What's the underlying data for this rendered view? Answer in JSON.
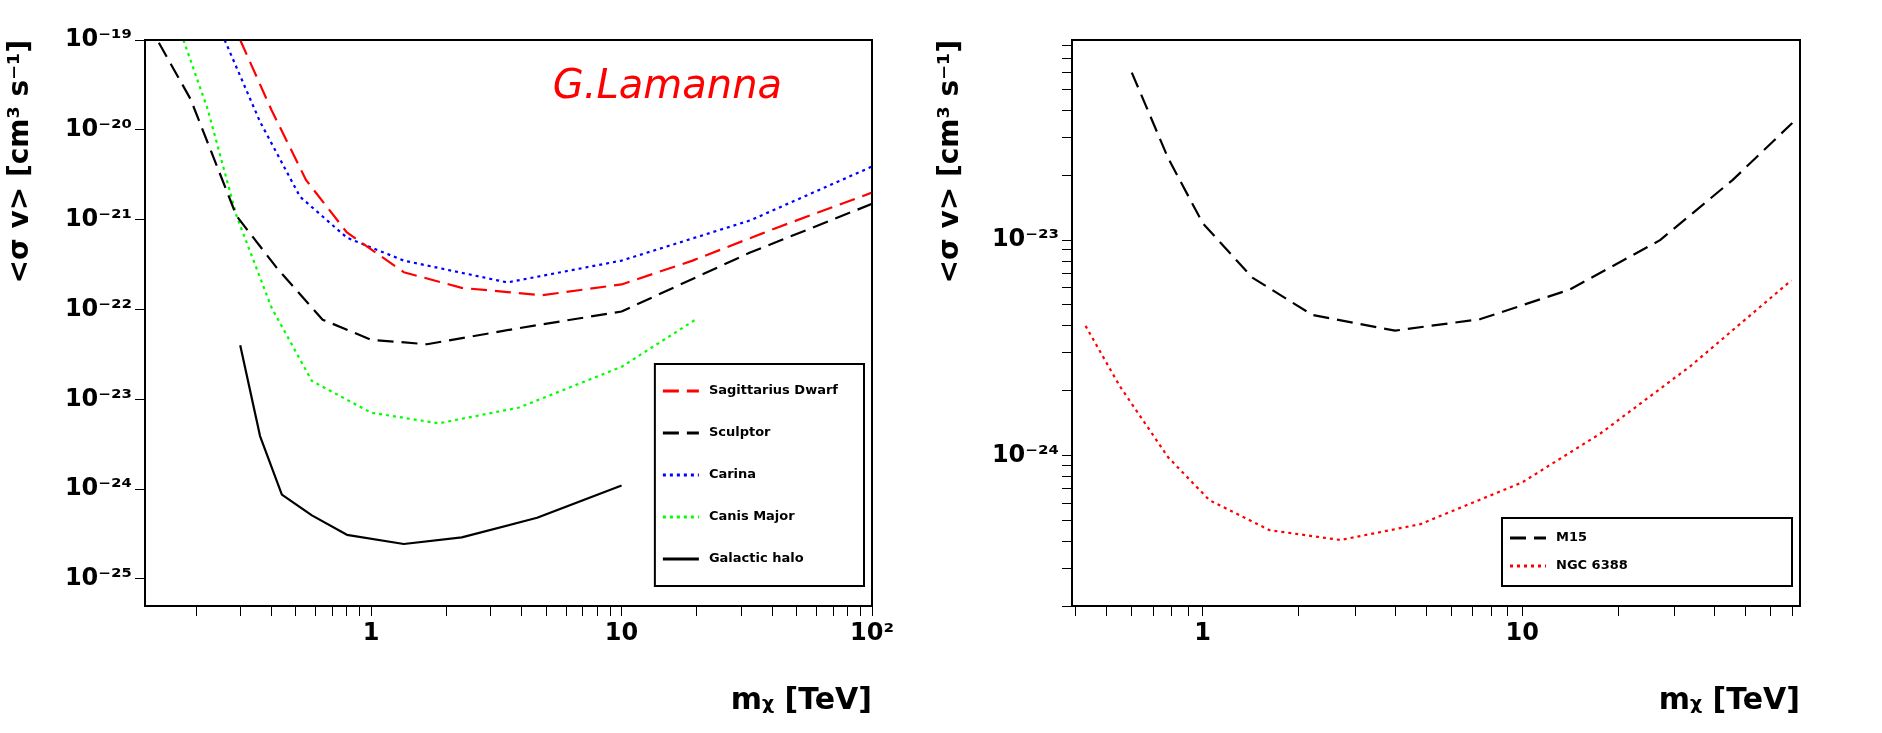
{
  "chart_data": [
    {
      "type": "line",
      "xlabel": "mᵪ [TeV]",
      "ylabel": "<σ v> [cm³ s⁻¹]",
      "log": "xy",
      "grid": false,
      "legend": "bottom right",
      "marker": "none",
      "annotations": [
        "G.Lamanna"
      ],
      "xlim": [
        0.125,
        100
      ],
      "ylim": [
        5e-26,
        1e-19
      ],
      "xticks": [
        {
          "value": 0.2,
          "label": null
        },
        {
          "value": 0.3,
          "label": null
        },
        {
          "value": 0.4,
          "label": null
        },
        {
          "value": 0.5,
          "label": null
        },
        {
          "value": 0.6,
          "label": null
        },
        {
          "value": 0.7,
          "label": null
        },
        {
          "value": 0.8,
          "label": null
        },
        {
          "value": 0.9,
          "label": null
        },
        {
          "value": 1,
          "label": "1"
        },
        {
          "value": 2,
          "label": null
        },
        {
          "value": 3,
          "label": null
        },
        {
          "value": 4,
          "label": null
        },
        {
          "value": 5,
          "label": null
        },
        {
          "value": 6,
          "label": null
        },
        {
          "value": 7,
          "label": null
        },
        {
          "value": 8,
          "label": null
        },
        {
          "value": 9,
          "label": null
        },
        {
          "value": 10,
          "label": "10"
        },
        {
          "value": 20,
          "label": null
        },
        {
          "value": 30,
          "label": null
        },
        {
          "value": 40,
          "label": null
        },
        {
          "value": 50,
          "label": null
        },
        {
          "value": 60,
          "label": null
        },
        {
          "value": 70,
          "label": null
        },
        {
          "value": 80,
          "label": null
        },
        {
          "value": 90,
          "label": null
        },
        {
          "value": 100,
          "label": "10²"
        }
      ],
      "yticks": [
        {
          "value": 1e-25,
          "label": "10⁻²⁵"
        },
        {
          "value": 1e-24,
          "label": "10⁻²⁴"
        },
        {
          "value": 1e-23,
          "label": "10⁻²³"
        },
        {
          "value": 1e-22,
          "label": "10⁻²²"
        },
        {
          "value": 1e-21,
          "label": "10⁻²¹"
        },
        {
          "value": 1e-20,
          "label": "10⁻²⁰"
        },
        {
          "value": 1e-19,
          "label": "10⁻¹⁹"
        }
      ],
      "series": [
        {
          "name": "Sagittarius Dwarf",
          "color": "#ff0000",
          "line_style": "dashed",
          "x": [
            0.3,
            0.4,
            0.55,
            0.8,
            1.35,
            2.3,
            4.8,
            10,
            19.2,
            42.5,
            100
          ],
          "values": [
            1e-19,
            1.66e-20,
            2.75e-21,
            7.2e-22,
            2.6e-22,
            1.74e-22,
            1.44e-22,
            1.9e-22,
            3.5e-22,
            8.3e-22,
            2e-21
          ]
        },
        {
          "name": "Sculptor",
          "color": "#000000",
          "line_style": "dashed",
          "x": [
            0.142,
            0.19,
            0.29,
            0.42,
            0.64,
            1,
            1.67,
            3.9,
            10,
            32.6,
            100
          ],
          "values": [
            9.3e-20,
            2.2e-20,
            1.1e-21,
            2.9e-22,
            7.7e-23,
            4.6e-23,
            4.1e-23,
            6.2e-23,
            9.5e-23,
            4.3e-22,
            1.5e-21
          ]
        },
        {
          "name": "Carina",
          "color": "#0000ff",
          "line_style": "dotted",
          "x": [
            0.26,
            0.36,
            0.52,
            0.8,
            1.35,
            3.5,
            10,
            32.6,
            100
          ],
          "values": [
            1e-19,
            1.23e-20,
            1.8e-21,
            6.3e-22,
            3.5e-22,
            2e-22,
            3.5e-22,
            9.8e-22,
            3.9e-21
          ]
        },
        {
          "name": "Canis Major",
          "color": "#00ff00",
          "line_style": "dotted",
          "x": [
            0.178,
            0.223,
            0.29,
            0.4,
            0.58,
            1,
            1.86,
            3.9,
            10,
            20
          ],
          "values": [
            1e-19,
            1.66e-20,
            1.1e-21,
            1.05e-22,
            1.6e-23,
            7.1e-24,
            5.4e-24,
            8.1e-24,
            2.3e-23,
            7.9e-23
          ]
        },
        {
          "name": "Galactic halo",
          "color": "#000000",
          "line_style": "solid",
          "x": [
            0.3,
            0.36,
            0.44,
            0.58,
            0.8,
            1.35,
            2.3,
            4.6,
            10
          ],
          "values": [
            4e-23,
            3.9e-24,
            8.7e-25,
            5.1e-25,
            3.1e-25,
            2.45e-25,
            2.9e-25,
            4.8e-25,
            1.1e-24
          ]
        }
      ]
    },
    {
      "type": "line",
      "xlabel": "mᵪ [TeV]",
      "ylabel": "<σ v> [cm³ s⁻¹]",
      "log": "xy",
      "grid": false,
      "legend": "bottom right",
      "marker": "none",
      "xlim": [
        0.39,
        74
      ],
      "ylim": [
        2e-25,
        8.5e-23
      ],
      "xticks": [
        {
          "value": 0.4,
          "label": null
        },
        {
          "value": 0.5,
          "label": null
        },
        {
          "value": 0.6,
          "label": null
        },
        {
          "value": 0.7,
          "label": null
        },
        {
          "value": 0.8,
          "label": null
        },
        {
          "value": 0.9,
          "label": null
        },
        {
          "value": 1,
          "label": "1"
        },
        {
          "value": 2,
          "label": null
        },
        {
          "value": 3,
          "label": null
        },
        {
          "value": 4,
          "label": null
        },
        {
          "value": 5,
          "label": null
        },
        {
          "value": 6,
          "label": null
        },
        {
          "value": 7,
          "label": null
        },
        {
          "value": 8,
          "label": null
        },
        {
          "value": 9,
          "label": null
        },
        {
          "value": 10,
          "label": "10"
        },
        {
          "value": 20,
          "label": null
        },
        {
          "value": 30,
          "label": null
        },
        {
          "value": 40,
          "label": null
        },
        {
          "value": 50,
          "label": null
        },
        {
          "value": 60,
          "label": null
        },
        {
          "value": 70,
          "label": null
        }
      ],
      "yticks": [
        {
          "value": 2e-25,
          "label": null
        },
        {
          "value": 3e-25,
          "label": null
        },
        {
          "value": 4e-25,
          "label": null
        },
        {
          "value": 5e-25,
          "label": null
        },
        {
          "value": 6e-25,
          "label": null
        },
        {
          "value": 7e-25,
          "label": null
        },
        {
          "value": 8e-25,
          "label": null
        },
        {
          "value": 9e-25,
          "label": null
        },
        {
          "value": 1e-24,
          "label": "10⁻²⁴"
        },
        {
          "value": 2e-24,
          "label": null
        },
        {
          "value": 3e-24,
          "label": null
        },
        {
          "value": 4e-24,
          "label": null
        },
        {
          "value": 5e-24,
          "label": null
        },
        {
          "value": 6e-24,
          "label": null
        },
        {
          "value": 7e-24,
          "label": null
        },
        {
          "value": 8e-24,
          "label": null
        },
        {
          "value": 9e-24,
          "label": null
        },
        {
          "value": 1e-23,
          "label": "10⁻²³"
        },
        {
          "value": 2e-23,
          "label": null
        },
        {
          "value": 3e-23,
          "label": null
        },
        {
          "value": 4e-23,
          "label": null
        },
        {
          "value": 5e-23,
          "label": null
        },
        {
          "value": 6e-23,
          "label": null
        },
        {
          "value": 7e-23,
          "label": null
        },
        {
          "value": 8e-23,
          "label": null
        }
      ],
      "series": [
        {
          "name": "M15",
          "color": "#000000",
          "line_style": "dashed",
          "x": [
            0.6,
            0.78,
            1,
            1.43,
            2.2,
            4,
            7.4,
            14.1,
            27,
            45.5,
            70
          ],
          "values": [
            6e-23,
            2.4e-23,
            1.2e-23,
            6.7e-24,
            4.5e-24,
            3.8e-24,
            4.3e-24,
            5.9e-24,
            1e-23,
            1.9e-23,
            3.5e-23
          ]
        },
        {
          "name": "NGC 6388",
          "color": "#ff0000",
          "line_style": "dotted",
          "x": [
            0.43,
            0.55,
            0.78,
            1.05,
            1.62,
            2.7,
            4.8,
            10,
            17.5,
            33.6,
            69.5
          ],
          "values": [
            4e-24,
            2.1e-24,
            9.8e-25,
            6.2e-25,
            4.5e-25,
            4.05e-25,
            4.8e-25,
            7.5e-25,
            1.26e-24,
            2.6e-24,
            6.5e-24
          ]
        }
      ]
    }
  ]
}
